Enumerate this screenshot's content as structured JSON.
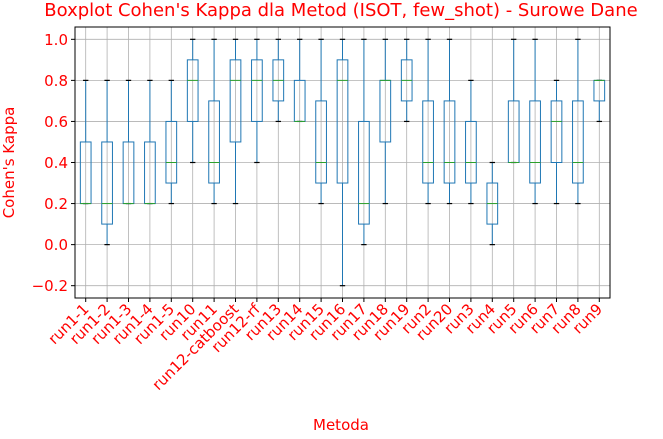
{
  "chart_data": {
    "type": "boxplot",
    "title": "Boxplot Cohen's Kappa dla Metod (ISOT, few_shot) - Surowe Dane",
    "xlabel": "Metoda",
    "ylabel": "Cohen's Kappa",
    "ylim": [
      -0.26,
      1.06
    ],
    "yticks": [
      -0.2,
      0.0,
      0.2,
      0.4,
      0.6,
      0.8,
      1.0
    ],
    "ytick_labels": [
      "−0.2",
      "0.0",
      "0.2",
      "0.4",
      "0.6",
      "0.8",
      "1.0"
    ],
    "grid": true,
    "colors": {
      "title": "#ff0000",
      "labels": "#ff0000",
      "box": "#1f77b4",
      "median": "#2ca02c",
      "whisker": "#1f77b4",
      "grid": "#b0b0b0",
      "cap": "#000000"
    },
    "categories": [
      "run1-1",
      "run1-2",
      "run1-3",
      "run1-4",
      "run1-5",
      "run10",
      "run11",
      "run12-catboost",
      "run12-rf",
      "run13",
      "run14",
      "run15",
      "run16",
      "run17",
      "run18",
      "run19",
      "run2",
      "run20",
      "run3",
      "run4",
      "run5",
      "run6",
      "run7",
      "run8",
      "run9"
    ],
    "boxes": [
      {
        "label": "run1-1",
        "min": 0.2,
        "q1": 0.2,
        "median": 0.2,
        "q3": 0.5,
        "max": 0.8
      },
      {
        "label": "run1-2",
        "min": 0.0,
        "q1": 0.1,
        "median": 0.2,
        "q3": 0.5,
        "max": 0.8
      },
      {
        "label": "run1-3",
        "min": 0.2,
        "q1": 0.2,
        "median": 0.2,
        "q3": 0.5,
        "max": 0.8
      },
      {
        "label": "run1-4",
        "min": 0.2,
        "q1": 0.2,
        "median": 0.2,
        "q3": 0.5,
        "max": 0.8
      },
      {
        "label": "run1-5",
        "min": 0.2,
        "q1": 0.3,
        "median": 0.4,
        "q3": 0.6,
        "max": 0.8
      },
      {
        "label": "run10",
        "min": 0.4,
        "q1": 0.6,
        "median": 0.8,
        "q3": 0.9,
        "max": 1.0
      },
      {
        "label": "run11",
        "min": 0.2,
        "q1": 0.3,
        "median": 0.4,
        "q3": 0.7,
        "max": 1.0
      },
      {
        "label": "run12-catboost",
        "min": 0.2,
        "q1": 0.5,
        "median": 0.8,
        "q3": 0.9,
        "max": 1.0
      },
      {
        "label": "run12-rf",
        "min": 0.4,
        "q1": 0.6,
        "median": 0.8,
        "q3": 0.9,
        "max": 1.0
      },
      {
        "label": "run13",
        "min": 0.6,
        "q1": 0.7,
        "median": 0.8,
        "q3": 0.9,
        "max": 1.0
      },
      {
        "label": "run14",
        "min": 0.6,
        "q1": 0.6,
        "median": 0.6,
        "q3": 0.8,
        "max": 1.0
      },
      {
        "label": "run15",
        "min": 0.2,
        "q1": 0.3,
        "median": 0.4,
        "q3": 0.7,
        "max": 1.0
      },
      {
        "label": "run16",
        "min": -0.2,
        "q1": 0.3,
        "median": 0.8,
        "q3": 0.9,
        "max": 1.0
      },
      {
        "label": "run17",
        "min": 0.0,
        "q1": 0.1,
        "median": 0.2,
        "q3": 0.6,
        "max": 1.0
      },
      {
        "label": "run18",
        "min": 0.2,
        "q1": 0.5,
        "median": 0.8,
        "q3": 0.8,
        "max": 1.0
      },
      {
        "label": "run19",
        "min": 0.6,
        "q1": 0.7,
        "median": 0.8,
        "q3": 0.9,
        "max": 1.0
      },
      {
        "label": "run2",
        "min": 0.2,
        "q1": 0.3,
        "median": 0.4,
        "q3": 0.7,
        "max": 1.0
      },
      {
        "label": "run20",
        "min": 0.2,
        "q1": 0.3,
        "median": 0.4,
        "q3": 0.7,
        "max": 1.0
      },
      {
        "label": "run3",
        "min": 0.2,
        "q1": 0.3,
        "median": 0.4,
        "q3": 0.6,
        "max": 0.8
      },
      {
        "label": "run4",
        "min": 0.0,
        "q1": 0.1,
        "median": 0.2,
        "q3": 0.3,
        "max": 0.4
      },
      {
        "label": "run5",
        "min": 0.4,
        "q1": 0.4,
        "median": 0.4,
        "q3": 0.7,
        "max": 1.0
      },
      {
        "label": "run6",
        "min": 0.2,
        "q1": 0.3,
        "median": 0.4,
        "q3": 0.7,
        "max": 1.0
      },
      {
        "label": "run7",
        "min": 0.2,
        "q1": 0.4,
        "median": 0.6,
        "q3": 0.7,
        "max": 0.8
      },
      {
        "label": "run8",
        "min": 0.2,
        "q1": 0.3,
        "median": 0.4,
        "q3": 0.7,
        "max": 1.0
      },
      {
        "label": "run9",
        "min": 0.6,
        "q1": 0.7,
        "median": 0.8,
        "q3": 0.8,
        "max": 0.8
      }
    ]
  }
}
